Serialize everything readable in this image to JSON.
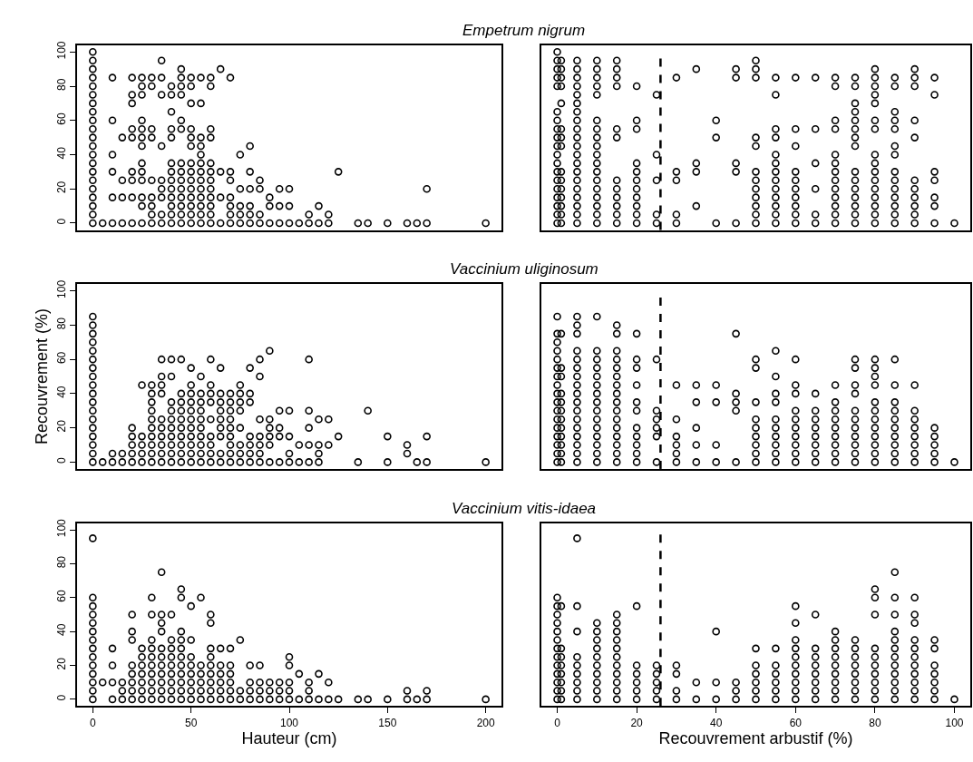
{
  "chart_data": [
    {
      "type": "scatter",
      "title": "Empetrum nigrum",
      "marker": "circle",
      "xlim": [
        -8,
        208
      ],
      "ylim": [
        -4,
        104
      ],
      "yticks": [
        0,
        20,
        40,
        60,
        80,
        100
      ],
      "tick_labels": "y",
      "grid": false,
      "series": [
        {
          "color": "#000000",
          "x": [
            0,
            0,
            0,
            0,
            0,
            0,
            0,
            0,
            0,
            0,
            0,
            0,
            0,
            0,
            0,
            0,
            0,
            0,
            0,
            0,
            0,
            5,
            10,
            10,
            10,
            10,
            10,
            10,
            15,
            15,
            15,
            15,
            20,
            20,
            20,
            20,
            20,
            20,
            20,
            20,
            20,
            25,
            25,
            25,
            25,
            25,
            25,
            25,
            25,
            25,
            25,
            25,
            25,
            25,
            30,
            30,
            30,
            30,
            30,
            30,
            30,
            30,
            30,
            35,
            35,
            35,
            35,
            35,
            35,
            35,
            35,
            35,
            40,
            40,
            40,
            40,
            40,
            40,
            40,
            40,
            40,
            40,
            40,
            40,
            40,
            45,
            45,
            45,
            45,
            45,
            45,
            45,
            45,
            45,
            45,
            45,
            45,
            45,
            45,
            50,
            50,
            50,
            50,
            50,
            50,
            50,
            50,
            50,
            50,
            50,
            50,
            50,
            50,
            55,
            55,
            55,
            55,
            55,
            55,
            55,
            55,
            55,
            55,
            55,
            55,
            55,
            60,
            60,
            60,
            60,
            60,
            60,
            60,
            60,
            60,
            60,
            60,
            60,
            65,
            65,
            65,
            65,
            70,
            70,
            70,
            70,
            70,
            70,
            70,
            75,
            75,
            75,
            75,
            75,
            80,
            80,
            80,
            80,
            80,
            80,
            85,
            85,
            85,
            85,
            90,
            90,
            90,
            95,
            95,
            95,
            100,
            100,
            100,
            105,
            110,
            110,
            115,
            115,
            120,
            120,
            125,
            135,
            140,
            150,
            160,
            165,
            170,
            170,
            200
          ],
          "values": [
            0,
            5,
            10,
            15,
            20,
            25,
            30,
            35,
            40,
            45,
            50,
            55,
            60,
            65,
            70,
            75,
            80,
            85,
            90,
            95,
            100,
            0,
            0,
            15,
            30,
            40,
            60,
            85,
            0,
            15,
            25,
            50,
            0,
            15,
            25,
            30,
            50,
            55,
            70,
            75,
            85,
            0,
            10,
            15,
            25,
            30,
            35,
            45,
            50,
            55,
            60,
            75,
            80,
            85,
            0,
            5,
            10,
            15,
            25,
            50,
            55,
            80,
            85,
            0,
            5,
            15,
            20,
            25,
            45,
            75,
            85,
            95,
            0,
            5,
            10,
            15,
            20,
            25,
            30,
            35,
            50,
            55,
            65,
            75,
            80,
            0,
            5,
            10,
            15,
            20,
            25,
            30,
            35,
            55,
            60,
            75,
            80,
            85,
            90,
            0,
            5,
            10,
            15,
            20,
            25,
            30,
            35,
            45,
            50,
            55,
            70,
            80,
            85,
            0,
            5,
            10,
            15,
            20,
            25,
            30,
            35,
            40,
            45,
            50,
            70,
            85,
            0,
            5,
            10,
            15,
            20,
            25,
            30,
            35,
            50,
            55,
            80,
            85,
            0,
            15,
            30,
            90,
            0,
            5,
            10,
            15,
            25,
            30,
            85,
            0,
            5,
            10,
            20,
            40,
            0,
            5,
            10,
            20,
            30,
            45,
            0,
            5,
            20,
            25,
            0,
            10,
            15,
            0,
            10,
            20,
            0,
            10,
            20,
            0,
            0,
            5,
            0,
            10,
            0,
            5,
            30,
            0,
            0,
            0,
            0,
            0,
            0,
            20,
            0
          ]
        }
      ]
    },
    {
      "type": "scatter",
      "marker": "circle",
      "xlim": [
        -4,
        104
      ],
      "ylim": [
        -4,
        104
      ],
      "tick_labels": false,
      "grid": false,
      "ref_lines": [
        {
          "axis": "x",
          "value": 26,
          "color": "#000000",
          "line_style": "dashed"
        }
      ],
      "series": [
        {
          "color": "#000000",
          "x": [
            0,
            0,
            0,
            0,
            0,
            0,
            0,
            0,
            0,
            0,
            0,
            0,
            0,
            0,
            0,
            0,
            0,
            0,
            0,
            1,
            1,
            1,
            1,
            1,
            1,
            1,
            1,
            1,
            1,
            1,
            1,
            1,
            1,
            1,
            5,
            5,
            5,
            5,
            5,
            5,
            5,
            5,
            5,
            5,
            5,
            5,
            5,
            5,
            5,
            5,
            5,
            5,
            5,
            5,
            10,
            10,
            10,
            10,
            10,
            10,
            10,
            10,
            10,
            10,
            10,
            10,
            10,
            10,
            10,
            10,
            10,
            10,
            15,
            15,
            15,
            15,
            15,
            15,
            15,
            15,
            15,
            15,
            15,
            15,
            20,
            20,
            20,
            20,
            20,
            20,
            20,
            20,
            20,
            20,
            20,
            25,
            25,
            25,
            25,
            25,
            30,
            30,
            30,
            30,
            30,
            35,
            35,
            35,
            35,
            40,
            40,
            40,
            45,
            45,
            45,
            45,
            45,
            50,
            50,
            50,
            50,
            50,
            50,
            50,
            50,
            50,
            50,
            50,
            50,
            55,
            55,
            55,
            55,
            55,
            55,
            55,
            55,
            55,
            55,
            55,
            55,
            55,
            60,
            60,
            60,
            60,
            60,
            60,
            60,
            60,
            60,
            60,
            65,
            65,
            65,
            65,
            65,
            65,
            70,
            70,
            70,
            70,
            70,
            70,
            70,
            70,
            70,
            70,
            70,
            70,
            70,
            75,
            75,
            75,
            75,
            75,
            75,
            75,
            75,
            75,
            75,
            75,
            75,
            75,
            75,
            75,
            80,
            80,
            80,
            80,
            80,
            80,
            80,
            80,
            80,
            80,
            80,
            80,
            80,
            80,
            80,
            80,
            85,
            85,
            85,
            85,
            85,
            85,
            85,
            85,
            85,
            85,
            85,
            85,
            85,
            85,
            90,
            90,
            90,
            90,
            90,
            90,
            90,
            90,
            90,
            90,
            90,
            95,
            95,
            95,
            95,
            95,
            95,
            95,
            100
          ],
          "values": [
            0,
            5,
            10,
            15,
            20,
            25,
            30,
            35,
            40,
            45,
            50,
            55,
            60,
            65,
            80,
            85,
            90,
            95,
            100,
            0,
            5,
            10,
            15,
            20,
            25,
            30,
            45,
            50,
            55,
            70,
            80,
            85,
            90,
            95,
            0,
            5,
            10,
            15,
            20,
            25,
            30,
            35,
            40,
            45,
            50,
            55,
            60,
            65,
            70,
            75,
            80,
            85,
            90,
            95,
            0,
            5,
            10,
            15,
            20,
            25,
            30,
            35,
            40,
            45,
            50,
            55,
            60,
            75,
            80,
            85,
            90,
            95,
            0,
            5,
            10,
            15,
            20,
            25,
            50,
            55,
            80,
            85,
            90,
            95,
            0,
            5,
            10,
            15,
            20,
            25,
            30,
            35,
            55,
            60,
            80,
            0,
            5,
            25,
            40,
            75,
            0,
            5,
            25,
            30,
            85,
            10,
            30,
            35,
            90,
            0,
            50,
            60,
            0,
            30,
            35,
            85,
            90,
            0,
            5,
            10,
            15,
            20,
            25,
            30,
            45,
            50,
            85,
            90,
            95,
            0,
            5,
            10,
            15,
            20,
            25,
            30,
            35,
            40,
            50,
            55,
            75,
            85,
            0,
            5,
            10,
            15,
            20,
            25,
            30,
            45,
            55,
            85,
            0,
            5,
            20,
            35,
            55,
            85,
            0,
            5,
            10,
            15,
            20,
            25,
            30,
            35,
            40,
            55,
            60,
            80,
            85,
            0,
            5,
            10,
            15,
            20,
            25,
            30,
            45,
            50,
            55,
            60,
            65,
            70,
            80,
            85,
            0,
            5,
            10,
            15,
            20,
            25,
            30,
            35,
            40,
            55,
            60,
            70,
            75,
            80,
            85,
            90,
            0,
            5,
            10,
            15,
            20,
            25,
            30,
            40,
            45,
            55,
            60,
            65,
            80,
            85,
            0,
            5,
            10,
            15,
            20,
            25,
            50,
            60,
            80,
            85,
            90,
            0,
            10,
            15,
            25,
            30,
            75,
            85,
            0
          ]
        }
      ]
    },
    {
      "type": "scatter",
      "title": "Vaccinium uliginosum",
      "ylabel": "Recouvrement (%)",
      "marker": "circle",
      "xlim": [
        -8,
        208
      ],
      "ylim": [
        -4,
        104
      ],
      "yticks": [
        0,
        20,
        40,
        60,
        80,
        100
      ],
      "tick_labels": "y",
      "grid": false,
      "series": [
        {
          "color": "#000000",
          "x": [
            0,
            0,
            0,
            0,
            0,
            0,
            0,
            0,
            0,
            0,
            0,
            0,
            0,
            0,
            0,
            0,
            0,
            0,
            5,
            10,
            10,
            15,
            15,
            20,
            20,
            20,
            20,
            20,
            25,
            25,
            25,
            25,
            25,
            30,
            30,
            30,
            30,
            30,
            30,
            30,
            30,
            30,
            30,
            35,
            35,
            35,
            35,
            35,
            35,
            35,
            35,
            35,
            35,
            40,
            40,
            40,
            40,
            40,
            40,
            40,
            40,
            40,
            40,
            45,
            45,
            45,
            45,
            45,
            45,
            45,
            45,
            45,
            45,
            50,
            50,
            50,
            50,
            50,
            50,
            50,
            50,
            50,
            50,
            50,
            55,
            55,
            55,
            55,
            55,
            55,
            55,
            55,
            55,
            55,
            60,
            60,
            60,
            60,
            60,
            60,
            60,
            60,
            60,
            65,
            65,
            65,
            65,
            65,
            65,
            65,
            65,
            65,
            70,
            70,
            70,
            70,
            70,
            70,
            70,
            70,
            70,
            75,
            75,
            75,
            75,
            75,
            75,
            75,
            75,
            80,
            80,
            80,
            80,
            80,
            80,
            80,
            85,
            85,
            85,
            85,
            85,
            85,
            85,
            90,
            90,
            90,
            90,
            90,
            90,
            95,
            95,
            95,
            95,
            100,
            100,
            100,
            100,
            105,
            105,
            110,
            110,
            110,
            110,
            110,
            115,
            115,
            115,
            115,
            120,
            120,
            125,
            135,
            140,
            150,
            150,
            160,
            160,
            165,
            170,
            170,
            200
          ],
          "values": [
            0,
            5,
            10,
            15,
            20,
            25,
            30,
            35,
            40,
            45,
            50,
            55,
            60,
            65,
            70,
            75,
            80,
            85,
            0,
            0,
            5,
            0,
            5,
            0,
            5,
            10,
            15,
            20,
            0,
            5,
            10,
            15,
            45,
            0,
            5,
            10,
            15,
            20,
            25,
            30,
            35,
            40,
            45,
            0,
            5,
            10,
            15,
            20,
            25,
            40,
            45,
            50,
            60,
            0,
            5,
            10,
            15,
            20,
            25,
            30,
            35,
            50,
            60,
            0,
            5,
            10,
            15,
            20,
            25,
            30,
            35,
            40,
            60,
            0,
            5,
            10,
            15,
            20,
            25,
            30,
            35,
            40,
            45,
            55,
            0,
            5,
            10,
            15,
            20,
            25,
            30,
            35,
            40,
            50,
            0,
            5,
            10,
            15,
            25,
            35,
            40,
            45,
            60,
            0,
            5,
            15,
            20,
            25,
            30,
            35,
            40,
            55,
            0,
            5,
            10,
            15,
            20,
            25,
            30,
            35,
            40,
            0,
            5,
            10,
            20,
            30,
            35,
            40,
            45,
            0,
            5,
            10,
            15,
            35,
            40,
            55,
            0,
            5,
            10,
            15,
            25,
            50,
            60,
            0,
            10,
            15,
            20,
            25,
            65,
            0,
            15,
            20,
            30,
            0,
            5,
            15,
            30,
            0,
            10,
            0,
            10,
            20,
            30,
            60,
            0,
            5,
            10,
            25,
            10,
            25,
            15,
            0,
            30,
            0,
            15,
            5,
            10,
            0,
            0,
            15,
            0
          ]
        }
      ]
    },
    {
      "type": "scatter",
      "marker": "circle",
      "xlim": [
        -4,
        104
      ],
      "ylim": [
        -4,
        104
      ],
      "tick_labels": false,
      "grid": false,
      "ref_lines": [
        {
          "axis": "x",
          "value": 26,
          "color": "#000000",
          "line_style": "dashed"
        }
      ],
      "series": [
        {
          "color": "#000000",
          "x": [
            0,
            0,
            0,
            0,
            0,
            0,
            0,
            0,
            0,
            0,
            0,
            0,
            0,
            0,
            0,
            0,
            0,
            1,
            1,
            1,
            1,
            1,
            1,
            1,
            1,
            1,
            1,
            1,
            1,
            5,
            5,
            5,
            5,
            5,
            5,
            5,
            5,
            5,
            5,
            5,
            5,
            5,
            5,
            5,
            5,
            5,
            10,
            10,
            10,
            10,
            10,
            10,
            10,
            10,
            10,
            10,
            10,
            10,
            10,
            10,
            10,
            15,
            15,
            15,
            15,
            15,
            15,
            15,
            15,
            15,
            15,
            15,
            15,
            15,
            15,
            15,
            15,
            20,
            20,
            20,
            20,
            20,
            20,
            20,
            20,
            20,
            20,
            20,
            25,
            25,
            25,
            25,
            25,
            25,
            30,
            30,
            30,
            30,
            30,
            30,
            35,
            35,
            35,
            35,
            35,
            40,
            40,
            40,
            40,
            45,
            45,
            45,
            45,
            45,
            50,
            50,
            50,
            50,
            50,
            50,
            50,
            50,
            50,
            55,
            55,
            55,
            55,
            55,
            55,
            55,
            55,
            55,
            55,
            60,
            60,
            60,
            60,
            60,
            60,
            60,
            60,
            60,
            60,
            65,
            65,
            65,
            65,
            65,
            65,
            65,
            65,
            70,
            70,
            70,
            70,
            70,
            70,
            70,
            70,
            70,
            75,
            75,
            75,
            75,
            75,
            75,
            75,
            75,
            75,
            75,
            75,
            80,
            80,
            80,
            80,
            80,
            80,
            80,
            80,
            80,
            80,
            80,
            80,
            85,
            85,
            85,
            85,
            85,
            85,
            85,
            85,
            85,
            85,
            90,
            90,
            90,
            90,
            90,
            90,
            90,
            90,
            95,
            95,
            95,
            95,
            95,
            100
          ],
          "values": [
            0,
            5,
            10,
            15,
            20,
            25,
            30,
            35,
            40,
            45,
            50,
            55,
            60,
            65,
            70,
            75,
            85,
            0,
            5,
            10,
            15,
            20,
            25,
            30,
            35,
            40,
            50,
            55,
            75,
            0,
            5,
            10,
            15,
            20,
            25,
            30,
            35,
            40,
            45,
            50,
            55,
            60,
            65,
            75,
            80,
            85,
            0,
            5,
            10,
            15,
            20,
            25,
            30,
            35,
            40,
            45,
            50,
            55,
            60,
            65,
            85,
            0,
            5,
            10,
            15,
            20,
            25,
            30,
            35,
            40,
            45,
            50,
            55,
            60,
            65,
            75,
            80,
            0,
            5,
            10,
            15,
            20,
            30,
            35,
            45,
            55,
            60,
            75,
            0,
            15,
            20,
            25,
            30,
            60,
            0,
            5,
            10,
            15,
            25,
            45,
            0,
            10,
            20,
            35,
            45,
            0,
            10,
            35,
            45,
            0,
            30,
            35,
            40,
            75,
            0,
            5,
            10,
            15,
            20,
            25,
            35,
            55,
            60,
            0,
            5,
            10,
            15,
            20,
            25,
            35,
            40,
            50,
            65,
            0,
            5,
            10,
            15,
            20,
            25,
            30,
            40,
            45,
            60,
            0,
            5,
            10,
            15,
            20,
            25,
            30,
            40,
            0,
            5,
            10,
            15,
            20,
            25,
            30,
            35,
            45,
            0,
            5,
            10,
            15,
            20,
            25,
            30,
            40,
            45,
            55,
            60,
            0,
            5,
            10,
            15,
            20,
            25,
            30,
            35,
            45,
            50,
            55,
            60,
            0,
            5,
            10,
            15,
            20,
            25,
            30,
            35,
            45,
            60,
            0,
            5,
            10,
            15,
            20,
            25,
            30,
            45,
            0,
            5,
            10,
            15,
            20,
            0
          ]
        }
      ]
    },
    {
      "type": "scatter",
      "title": "Vaccinium vitis-idaea",
      "xlabel": "Hauteur (cm)",
      "marker": "circle",
      "xlim": [
        -8,
        208
      ],
      "ylim": [
        -4,
        104
      ],
      "xticks": [
        0,
        50,
        100,
        150,
        200
      ],
      "yticks": [
        0,
        20,
        40,
        60,
        80,
        100
      ],
      "grid": false,
      "series": [
        {
          "color": "#000000",
          "x": [
            0,
            0,
            0,
            0,
            0,
            0,
            0,
            0,
            0,
            0,
            0,
            0,
            0,
            0,
            5,
            10,
            10,
            10,
            10,
            15,
            15,
            15,
            20,
            20,
            20,
            20,
            20,
            20,
            20,
            20,
            25,
            25,
            25,
            25,
            25,
            25,
            25,
            30,
            30,
            30,
            30,
            30,
            30,
            30,
            30,
            30,
            30,
            35,
            35,
            35,
            35,
            35,
            35,
            35,
            35,
            35,
            35,
            35,
            40,
            40,
            40,
            40,
            40,
            40,
            40,
            40,
            40,
            45,
            45,
            45,
            45,
            45,
            45,
            45,
            45,
            45,
            45,
            45,
            50,
            50,
            50,
            50,
            50,
            50,
            50,
            50,
            55,
            55,
            55,
            55,
            55,
            55,
            60,
            60,
            60,
            60,
            60,
            60,
            60,
            60,
            60,
            65,
            65,
            65,
            65,
            65,
            65,
            70,
            70,
            70,
            70,
            70,
            70,
            75,
            75,
            75,
            80,
            80,
            80,
            80,
            85,
            85,
            85,
            85,
            90,
            90,
            90,
            95,
            95,
            95,
            100,
            100,
            100,
            100,
            100,
            105,
            105,
            110,
            110,
            110,
            115,
            115,
            120,
            120,
            125,
            135,
            140,
            150,
            160,
            160,
            165,
            170,
            170,
            200
          ],
          "values": [
            0,
            5,
            10,
            15,
            20,
            25,
            30,
            35,
            40,
            45,
            50,
            55,
            60,
            95,
            10,
            0,
            10,
            20,
            30,
            0,
            5,
            10,
            0,
            5,
            10,
            15,
            20,
            35,
            40,
            50,
            0,
            5,
            10,
            15,
            20,
            25,
            30,
            0,
            5,
            10,
            15,
            20,
            25,
            30,
            35,
            50,
            60,
            0,
            5,
            10,
            15,
            20,
            25,
            30,
            40,
            45,
            50,
            75,
            0,
            5,
            10,
            15,
            20,
            25,
            30,
            35,
            50,
            0,
            5,
            10,
            15,
            20,
            25,
            30,
            35,
            40,
            60,
            65,
            0,
            5,
            10,
            15,
            20,
            25,
            35,
            55,
            0,
            5,
            10,
            15,
            20,
            60,
            0,
            5,
            10,
            15,
            20,
            25,
            30,
            45,
            50,
            0,
            5,
            10,
            15,
            20,
            30,
            0,
            5,
            10,
            15,
            20,
            30,
            0,
            5,
            35,
            0,
            5,
            10,
            20,
            0,
            5,
            10,
            20,
            0,
            5,
            10,
            0,
            5,
            10,
            0,
            5,
            10,
            20,
            25,
            0,
            15,
            0,
            5,
            10,
            0,
            15,
            0,
            10,
            0,
            0,
            0,
            0,
            0,
            5,
            0,
            0,
            5,
            0
          ]
        }
      ]
    },
    {
      "type": "scatter",
      "xlabel": "Recouvrement arbustif (%)",
      "marker": "circle",
      "xlim": [
        -4,
        104
      ],
      "ylim": [
        -4,
        104
      ],
      "xticks": [
        0,
        20,
        40,
        60,
        80,
        100
      ],
      "tick_labels": "x",
      "grid": false,
      "ref_lines": [
        {
          "axis": "x",
          "value": 26,
          "color": "#000000",
          "line_style": "dashed"
        }
      ],
      "series": [
        {
          "color": "#000000",
          "x": [
            0,
            0,
            0,
            0,
            0,
            0,
            0,
            0,
            0,
            0,
            0,
            0,
            0,
            1,
            1,
            1,
            1,
            1,
            1,
            1,
            1,
            5,
            5,
            5,
            5,
            5,
            5,
            5,
            5,
            5,
            10,
            10,
            10,
            10,
            10,
            10,
            10,
            10,
            10,
            10,
            15,
            15,
            15,
            15,
            15,
            15,
            15,
            15,
            15,
            15,
            15,
            20,
            20,
            20,
            20,
            20,
            20,
            25,
            25,
            25,
            25,
            25,
            30,
            30,
            30,
            30,
            35,
            35,
            40,
            40,
            40,
            45,
            45,
            45,
            50,
            50,
            50,
            50,
            50,
            50,
            55,
            55,
            55,
            55,
            55,
            55,
            60,
            60,
            60,
            60,
            60,
            60,
            60,
            60,
            60,
            60,
            65,
            65,
            65,
            65,
            65,
            65,
            65,
            65,
            70,
            70,
            70,
            70,
            70,
            70,
            70,
            70,
            70,
            75,
            75,
            75,
            75,
            75,
            75,
            75,
            75,
            80,
            80,
            80,
            80,
            80,
            80,
            80,
            80,
            80,
            80,
            85,
            85,
            85,
            85,
            85,
            85,
            85,
            85,
            85,
            85,
            85,
            85,
            90,
            90,
            90,
            90,
            90,
            90,
            90,
            90,
            90,
            90,
            90,
            95,
            95,
            95,
            95,
            95,
            95,
            95,
            100
          ],
          "values": [
            0,
            5,
            10,
            15,
            20,
            25,
            30,
            35,
            40,
            45,
            50,
            55,
            60,
            0,
            5,
            10,
            15,
            20,
            25,
            30,
            55,
            0,
            5,
            10,
            15,
            20,
            25,
            40,
            55,
            95,
            0,
            5,
            10,
            15,
            20,
            25,
            30,
            35,
            40,
            45,
            0,
            5,
            10,
            15,
            20,
            25,
            30,
            35,
            40,
            45,
            50,
            0,
            5,
            10,
            15,
            20,
            55,
            0,
            5,
            10,
            15,
            20,
            0,
            5,
            15,
            20,
            0,
            10,
            0,
            10,
            40,
            0,
            5,
            10,
            0,
            5,
            10,
            15,
            20,
            30,
            0,
            5,
            10,
            15,
            20,
            30,
            0,
            5,
            10,
            15,
            20,
            25,
            30,
            35,
            45,
            55,
            0,
            5,
            10,
            15,
            20,
            25,
            30,
            50,
            0,
            5,
            10,
            15,
            20,
            25,
            30,
            35,
            40,
            0,
            5,
            10,
            15,
            20,
            25,
            30,
            35,
            0,
            5,
            10,
            15,
            20,
            25,
            30,
            50,
            60,
            65,
            0,
            5,
            10,
            15,
            20,
            25,
            30,
            35,
            40,
            50,
            60,
            75,
            0,
            5,
            10,
            15,
            20,
            25,
            30,
            35,
            45,
            50,
            60,
            0,
            5,
            10,
            15,
            20,
            30,
            35,
            0
          ]
        }
      ]
    }
  ]
}
